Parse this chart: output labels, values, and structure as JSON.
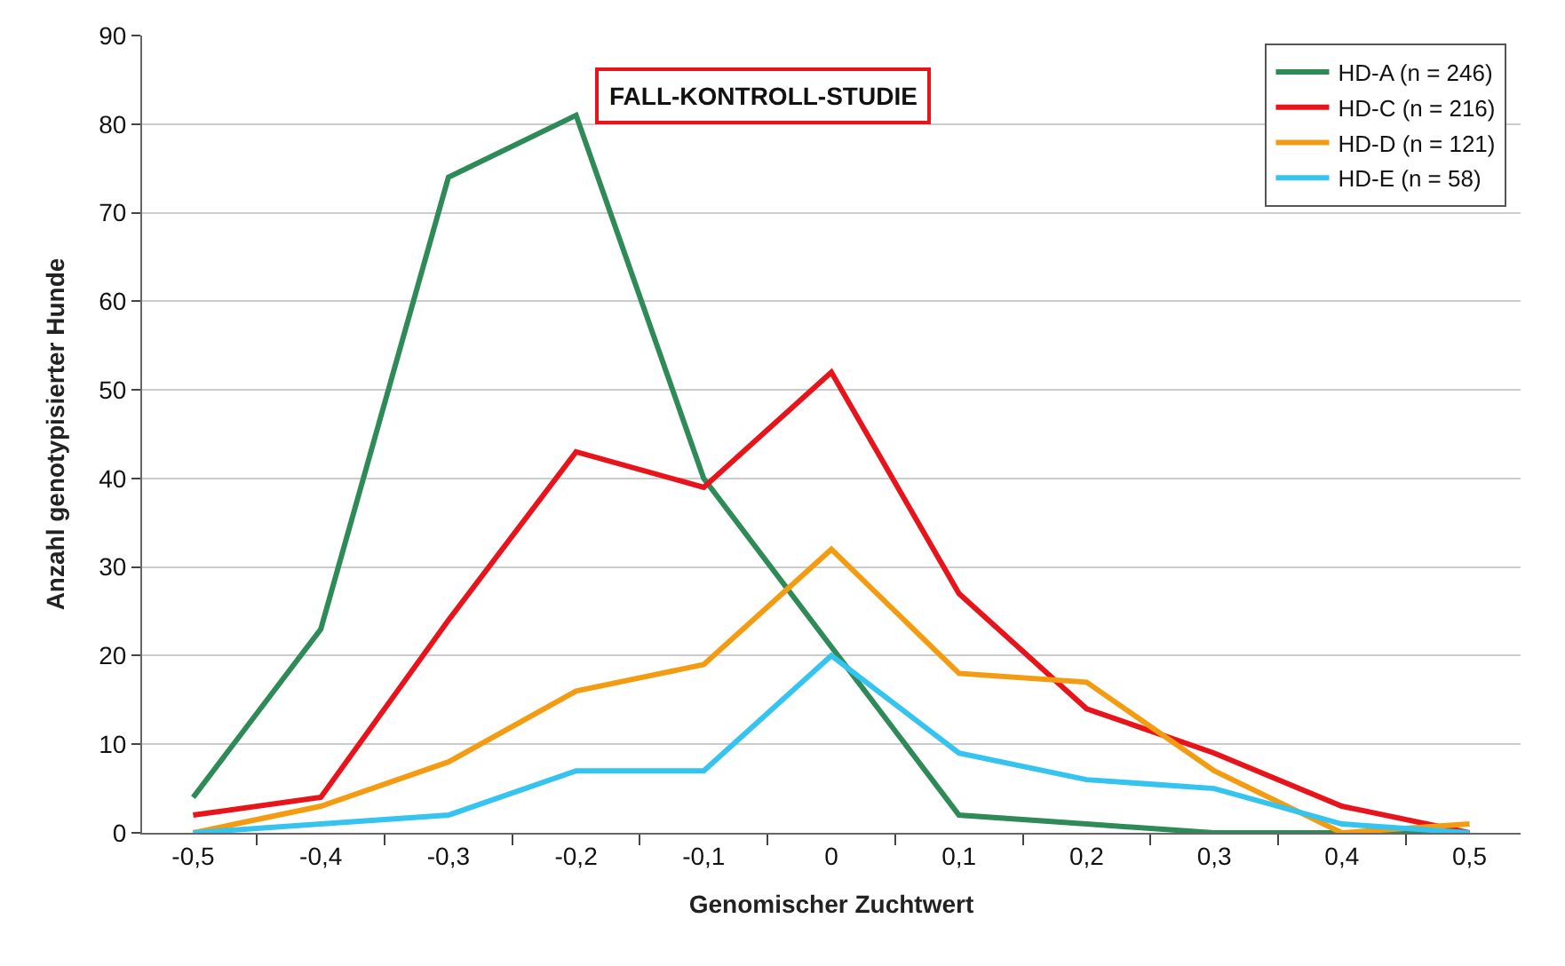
{
  "chart_data": {
    "type": "line",
    "title": "FALL-KONTROLL-STUDIE",
    "xlabel": "Genomischer Zuchtwert",
    "ylabel": "Anzahl genotypisierter Hunde",
    "categories": [
      "-0,5",
      "-0,4",
      "-0,3",
      "-0,2",
      "-0,1",
      "0",
      "0,1",
      "0,2",
      "0,3",
      "0,4",
      "0,5"
    ],
    "series": [
      {
        "name": "HD-A (n = 246)",
        "color": "#2e8b57",
        "values": [
          4,
          23,
          74,
          81,
          40,
          21,
          2,
          1,
          0,
          0,
          0
        ]
      },
      {
        "name": "HD-C (n = 216)",
        "color": "#e8141b",
        "values": [
          2,
          4,
          24,
          43,
          39,
          52,
          27,
          14,
          9,
          3,
          0
        ]
      },
      {
        "name": "HD-D (n = 121)",
        "color": "#f39c12",
        "values": [
          0,
          3,
          8,
          16,
          19,
          32,
          18,
          17,
          7,
          0,
          1
        ]
      },
      {
        "name": "HD-E (n = 58)",
        "color": "#35c3f0",
        "values": [
          0,
          1,
          2,
          7,
          7,
          20,
          9,
          6,
          5,
          1,
          0
        ]
      }
    ],
    "ylim": [
      0,
      90
    ],
    "yticks": [
      0,
      10,
      20,
      30,
      40,
      50,
      60,
      70,
      80,
      90
    ],
    "grid": "y",
    "legend": "top right",
    "marker": "none",
    "line_style": "solid"
  }
}
